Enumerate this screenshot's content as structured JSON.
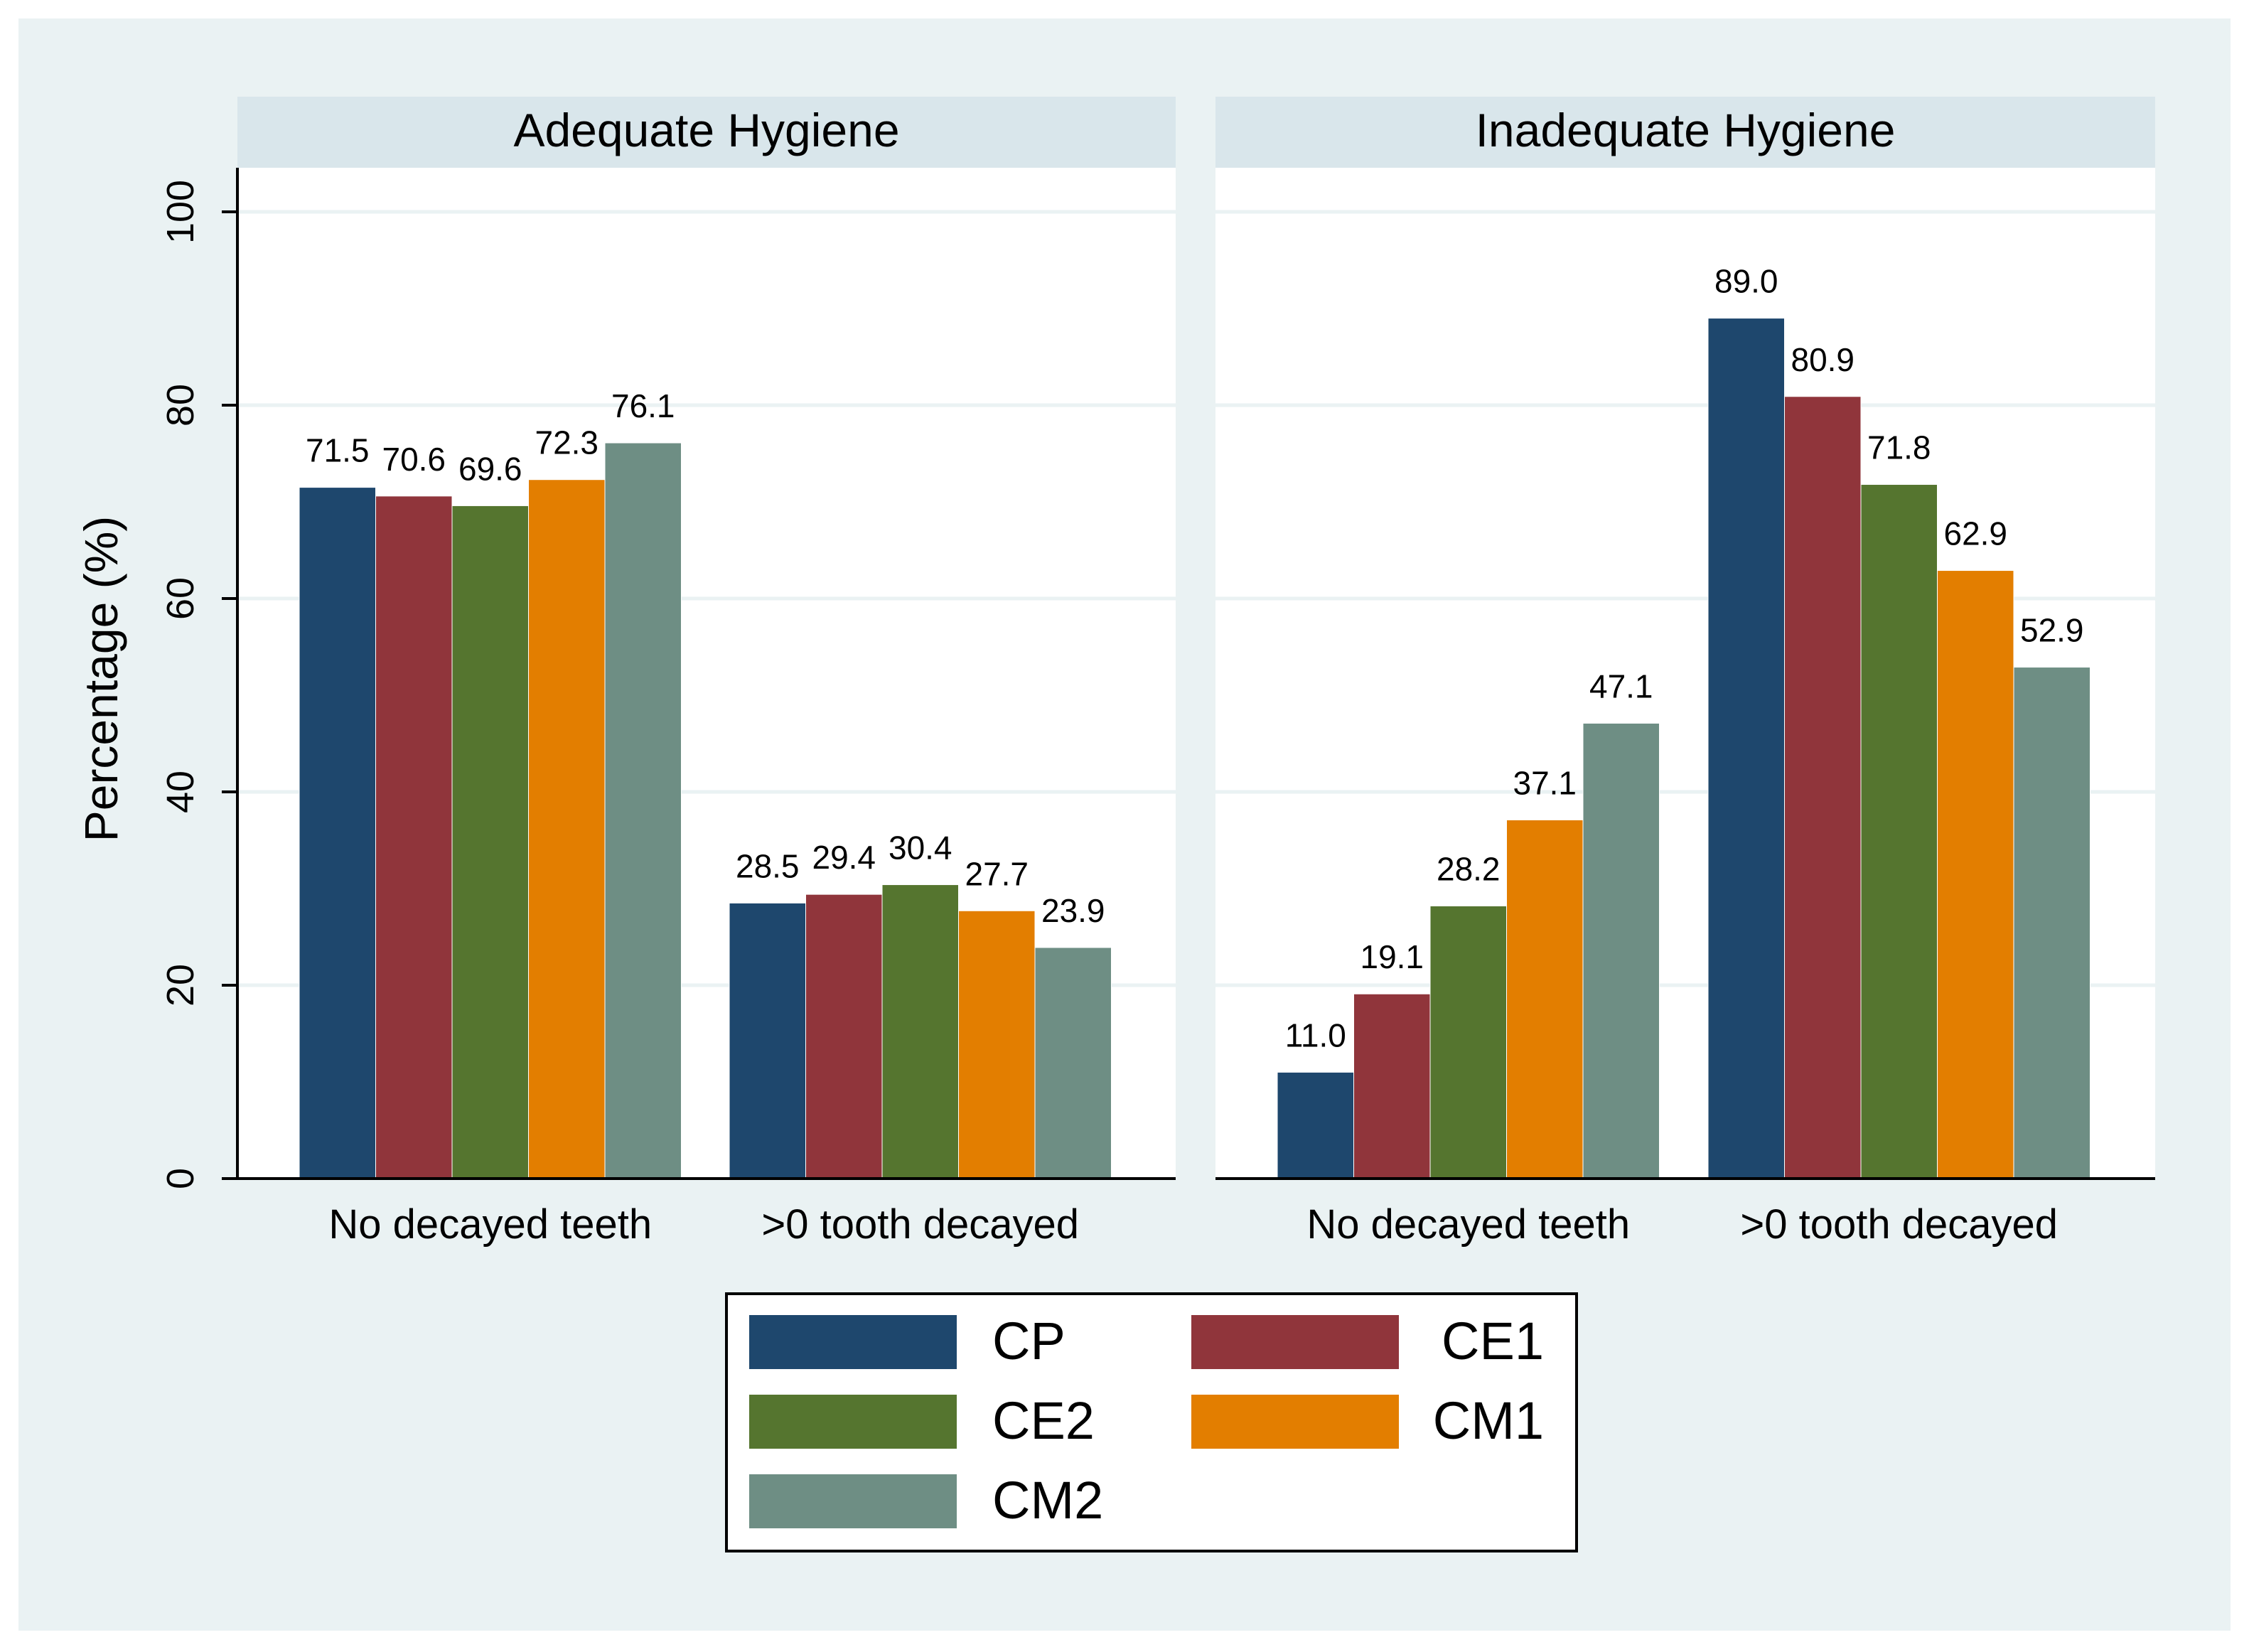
{
  "chart_data": {
    "type": "bar",
    "ylabel": "Percentage (%)",
    "ylim": [
      0,
      104
    ],
    "yticks": [
      0,
      20,
      40,
      60,
      80,
      100
    ],
    "ytick_labels": [
      "0",
      "20",
      "40",
      "60",
      "80",
      "100"
    ],
    "grid": true,
    "legend_position": "bottom-center",
    "series": [
      {
        "name": "CP",
        "color": "#1e476d"
      },
      {
        "name": "CE1",
        "color": "#90353b"
      },
      {
        "name": "CE2",
        "color": "#55752f"
      },
      {
        "name": "CM1",
        "color": "#e37e00"
      },
      {
        "name": "CM2",
        "color": "#6e8e84"
      }
    ],
    "panels": [
      {
        "title": "Adequate Hygiene",
        "categories": [
          "No decayed teeth",
          ">0 tooth decayed"
        ],
        "values": [
          [
            71.5,
            70.6,
            69.6,
            72.3,
            76.1
          ],
          [
            28.5,
            29.4,
            30.4,
            27.7,
            23.9
          ]
        ],
        "labels": [
          [
            "71.5",
            "70.6",
            "69.6",
            "72.3",
            "76.1"
          ],
          [
            "28.5",
            "29.4",
            "30.4",
            "27.7",
            "23.9"
          ]
        ]
      },
      {
        "title": "Inadequate Hygiene",
        "categories": [
          "No decayed teeth",
          ">0 tooth decayed"
        ],
        "values": [
          [
            11.0,
            19.1,
            28.2,
            37.1,
            47.1
          ],
          [
            89.0,
            80.9,
            71.8,
            62.9,
            52.9
          ]
        ],
        "labels": [
          [
            "11.0",
            "19.1",
            "28.2",
            "37.1",
            "47.1"
          ],
          [
            "89.0",
            "80.9",
            "71.8",
            "62.9",
            "52.9"
          ]
        ]
      }
    ]
  },
  "colors": {
    "outer_background": "#eaf2f3",
    "plot_background": "#ffffff",
    "strip_background": "#d9e6eb",
    "grid": "#eaf2f3",
    "axis": "#000000"
  }
}
